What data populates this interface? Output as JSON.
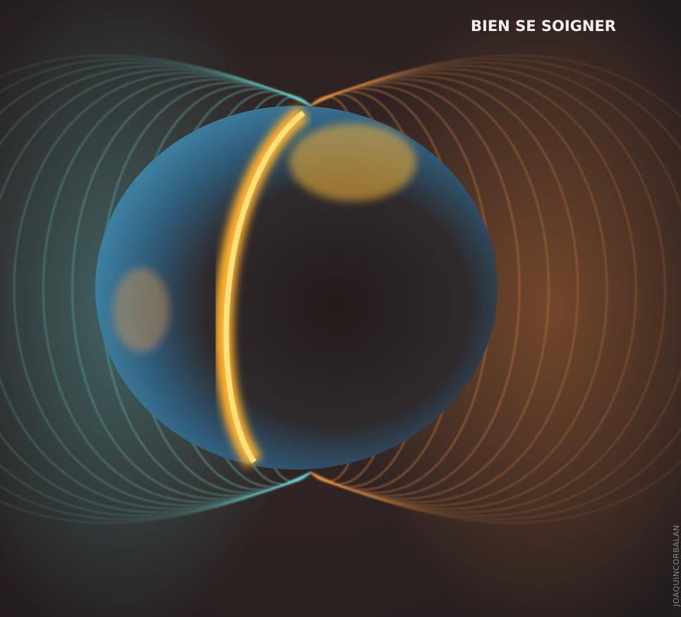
{
  "header": {
    "title": "BIEN SE SOIGNER"
  },
  "credit": "JOAQUINCORBALAN"
}
